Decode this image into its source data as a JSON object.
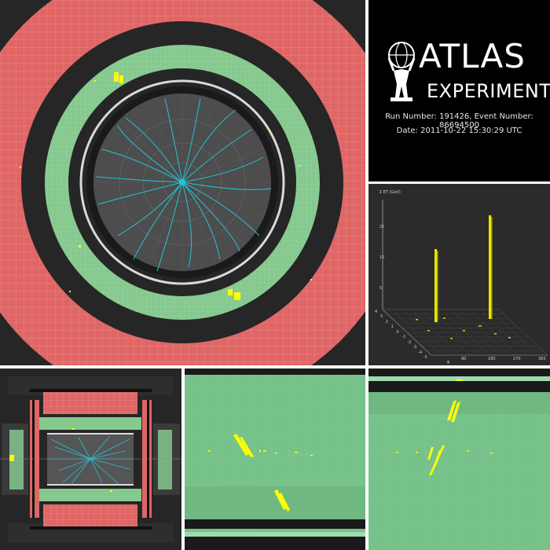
{
  "logo": {
    "line1": "ATLAS",
    "line2": "EXPERIMENT"
  },
  "event": {
    "run_event": "Run Number: 191426, Event Number: 86694500",
    "date": "Date: 2011-10-22 15:30:29 UTC"
  },
  "lego": {
    "axis_label": "Σ ET (GeV)",
    "y_ticks": [
      "25",
      "15",
      "5"
    ],
    "x_ticks": [
      "90",
      "180",
      "270",
      "360"
    ],
    "eta_ticks": [
      "4",
      "3",
      "2",
      "1",
      "0",
      "-1",
      "-2",
      "-3",
      "-4",
      "-5"
    ],
    "phi_label": "φ",
    "peaks": [
      {
        "phi": 0.52,
        "et": 0.62
      },
      {
        "phi": 0.85,
        "et": 0.88
      }
    ]
  },
  "colors": {
    "calo_red": "#e06666",
    "calo_green": "#86c98f",
    "track": "#22c4d8",
    "deposit": "#ffff00",
    "tracker_gray": "#555555"
  }
}
